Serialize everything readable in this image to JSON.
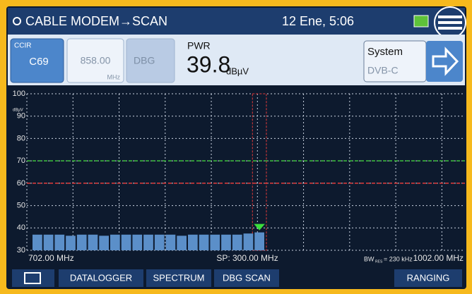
{
  "header": {
    "title": "CABLE MODEM→SCAN",
    "datetime": "12 Ene, 5:06"
  },
  "channel": {
    "plan": "CCIR",
    "channel": "C69",
    "frequency": "858.00",
    "frequency_unit": "MHz",
    "mode": "DBG"
  },
  "measurement": {
    "label": "PWR",
    "value": "39.8",
    "unit": "dBµV"
  },
  "system": {
    "label": "System",
    "value": "DVB-C"
  },
  "plot": {
    "y_unit": "dBµV",
    "ylim": [
      30,
      100
    ],
    "yticks": [
      30,
      40,
      50,
      60,
      70,
      80,
      90,
      100
    ],
    "level_lines": [
      {
        "value": 70,
        "color": "#3cc03c"
      },
      {
        "value": 60,
        "color": "#e23a3a"
      }
    ],
    "bar_color": "#5b8fc9",
    "bars": [
      37,
      37,
      37,
      36.5,
      37,
      37,
      36.5,
      37,
      37,
      37,
      37,
      37,
      37,
      36.5,
      37,
      37,
      37,
      37,
      37,
      37.5,
      38
    ],
    "start": "702.00 MHz",
    "span": "SP: 300.00 MHz",
    "bw_label": "BW",
    "bw_sub": "RES",
    "bw_value": "= 230 kHz",
    "stop": "1002.00 MHz"
  },
  "toolbar": [
    "DATALOGGER",
    "SPECTRUM",
    "DBG SCAN",
    "RANGING"
  ]
}
